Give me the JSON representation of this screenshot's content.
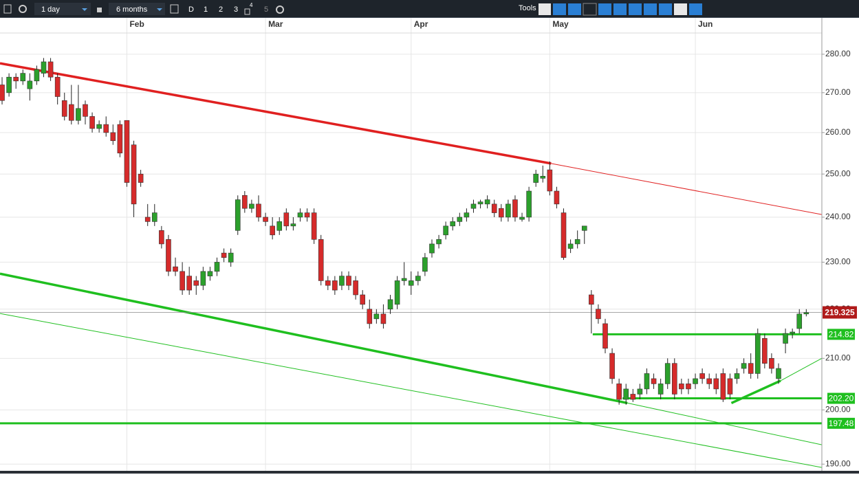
{
  "toolbar": {
    "interval": "1 day",
    "range": "6 months",
    "buttons": [
      "D",
      "1",
      "2",
      "3",
      "4",
      "5"
    ],
    "tools": "Tools"
  },
  "chart_data": {
    "type": "candlestick",
    "log_scale": true,
    "grid": true,
    "up_color": "#2ca02c",
    "down_color": "#d62b2b",
    "categories": [
      null,
      null,
      null,
      null,
      null,
      null,
      null,
      null,
      null,
      null,
      null,
      null,
      null,
      null,
      null,
      null,
      null,
      null,
      "Feb",
      null,
      null,
      null,
      null,
      null,
      null,
      null,
      null,
      null,
      null,
      null,
      null,
      null,
      null,
      null,
      null,
      null,
      null,
      null,
      "Mar",
      null,
      null,
      null,
      null,
      null,
      null,
      null,
      null,
      null,
      null,
      null,
      null,
      null,
      null,
      null,
      null,
      null,
      null,
      null,
      null,
      "Apr",
      null,
      null,
      null,
      null,
      null,
      null,
      null,
      null,
      null,
      null,
      null,
      null,
      null,
      null,
      null,
      null,
      null,
      null,
      null,
      "May",
      null,
      null,
      null,
      null,
      null,
      null,
      null,
      null,
      null,
      null,
      null,
      null,
      null,
      null,
      null,
      null,
      null,
      null,
      null,
      null,
      "Jun",
      null,
      null,
      null,
      null,
      null,
      null,
      null,
      null,
      null,
      null,
      null,
      null,
      null,
      null,
      null,
      null
    ],
    "open": [
      272,
      270,
      274,
      273,
      271,
      273,
      275,
      278,
      274,
      268,
      267,
      263,
      267,
      264,
      261,
      262,
      260,
      262,
      263,
      257,
      250,
      240,
      239,
      237,
      235,
      229,
      228,
      227,
      226,
      225,
      227,
      228,
      232,
      230,
      237,
      245,
      242,
      243,
      240,
      238,
      237,
      241,
      238,
      240,
      241,
      241,
      235,
      226,
      226,
      225,
      227,
      226,
      223,
      220,
      218,
      219,
      220,
      221,
      226,
      225,
      226,
      228,
      232,
      234,
      236,
      238,
      239,
      240,
      242,
      243,
      243,
      243,
      242,
      240,
      244,
      239.5,
      240,
      248,
      249,
      251,
      246,
      241,
      233,
      234,
      237,
      223,
      220,
      217,
      211,
      205,
      202,
      203,
      203,
      204,
      206,
      203,
      205,
      209,
      205,
      205,
      205,
      207,
      206,
      206,
      207,
      206,
      206,
      208,
      209,
      207,
      214,
      210,
      206,
      213,
      215,
      216,
      219
    ],
    "high": [
      274,
      275,
      275,
      276,
      275,
      277,
      279,
      279,
      275,
      270,
      272,
      272,
      268,
      265,
      263,
      264,
      262,
      263,
      263,
      258,
      251,
      243,
      243,
      238,
      236,
      231,
      230,
      229,
      227,
      229,
      229,
      231,
      233,
      233,
      245,
      246,
      244,
      245,
      241,
      240,
      240,
      242,
      240,
      242,
      242,
      242,
      236,
      227,
      227,
      228,
      228,
      227,
      224,
      222,
      220,
      221,
      223,
      227,
      230,
      228,
      228,
      232,
      235,
      236,
      239,
      240,
      241,
      242,
      244,
      244,
      245,
      244,
      243,
      244,
      245,
      241,
      247,
      251,
      252,
      253,
      247,
      242,
      235,
      237,
      238,
      224,
      221,
      218,
      212,
      206,
      205,
      204,
      205,
      208,
      207,
      206,
      210,
      210,
      206,
      206,
      207,
      208,
      207,
      207,
      208,
      207,
      208,
      210,
      211,
      216,
      215,
      211,
      209,
      216,
      216,
      220,
      220
    ],
    "low": [
      267,
      269,
      271,
      272,
      268,
      272,
      274,
      273,
      267,
      263,
      262,
      262,
      262,
      260,
      260,
      259,
      257,
      254,
      247,
      240,
      247,
      238,
      238,
      233,
      227,
      227,
      223,
      223,
      223,
      224,
      226,
      227,
      230,
      229,
      236,
      241,
      241,
      239,
      238,
      235,
      236,
      237,
      237,
      239,
      239,
      234,
      225,
      224,
      223,
      224,
      224,
      222,
      220,
      216,
      217,
      216,
      219,
      220,
      225,
      223,
      225,
      227,
      231,
      233,
      235,
      237,
      238,
      239,
      241,
      242,
      242,
      240,
      239,
      239,
      239,
      239,
      239,
      247,
      248,
      245,
      242,
      230.5,
      232,
      233,
      234,
      215,
      217,
      211,
      205,
      201,
      201,
      201.5,
      202,
      203,
      204,
      202,
      204,
      202,
      203,
      203,
      204,
      205,
      204,
      203,
      201.5,
      202,
      205,
      207,
      206,
      206,
      208,
      207,
      205,
      211,
      214,
      215,
      218.5
    ],
    "close": [
      268,
      274,
      273,
      275,
      273,
      276,
      278,
      274,
      269,
      264,
      263,
      266,
      264,
      261,
      262,
      260,
      258,
      255,
      248,
      243,
      248,
      239,
      241,
      234,
      228,
      228,
      224,
      224,
      225,
      228,
      228,
      230,
      231,
      232,
      244,
      242,
      243,
      240,
      239,
      236,
      239,
      238,
      238.5,
      241,
      240,
      235,
      226,
      225,
      224,
      227,
      225,
      223,
      221,
      217,
      219,
      217,
      222,
      226,
      226.5,
      226,
      227,
      231,
      234,
      235,
      238,
      239,
      240,
      241,
      243,
      243.5,
      244,
      241,
      240,
      243,
      240,
      240,
      246,
      250,
      249.5,
      246,
      243,
      231,
      234,
      235,
      238,
      221,
      218,
      212,
      206,
      202,
      204,
      202,
      204,
      207,
      205,
      205,
      209,
      203,
      204,
      204,
      206,
      206,
      205,
      204,
      202,
      203,
      207,
      209,
      207,
      215,
      209,
      208,
      208,
      215,
      215.3,
      219,
      219.3
    ],
    "xlim": [
      -0.3,
      118.25
    ],
    "ylim": [
      188.8,
      289.8
    ],
    "yticks": [
      {
        "value": 190,
        "label": "190.00"
      },
      {
        "value": 200,
        "label": "200.00"
      },
      {
        "value": 210,
        "label": "210.00"
      },
      {
        "value": 220,
        "label": "220.00"
      },
      {
        "value": 230,
        "label": "230.00"
      },
      {
        "value": 240,
        "label": "240.00"
      },
      {
        "value": 250,
        "label": "250.00"
      },
      {
        "value": 260,
        "label": "260.00"
      },
      {
        "value": 270,
        "label": "270.00"
      },
      {
        "value": 280,
        "label": "280.00"
      }
    ],
    "last_price": 219.325,
    "last_price_color": "#b01a1a",
    "levels": [
      {
        "value": 214.82,
        "label": "214.82",
        "start": 85.2,
        "color": "#1fbf1f"
      },
      {
        "value": 202.2,
        "label": "202.20",
        "start": 89.5,
        "color": "#1fbf1f"
      },
      {
        "value": 197.48,
        "label": "197.48",
        "start": -0.3,
        "color": "#1fbf1f"
      }
    ],
    "trendlines": [
      {
        "color": "#e02020",
        "style": "thick",
        "points": [
          [
            -0.3,
            277.6
          ],
          [
            79.2,
            252.5
          ]
        ]
      },
      {
        "color": "#e02020",
        "style": "thin",
        "points": [
          [
            79.2,
            252.5
          ],
          [
            118.25,
            240.6
          ]
        ]
      },
      {
        "color": "#1fbf1f",
        "style": "thick",
        "points": [
          [
            -0.3,
            227.5
          ],
          [
            90.2,
            201.3
          ]
        ]
      },
      {
        "color": "#1fbf1f",
        "style": "thin",
        "points": [
          [
            90.2,
            201.3
          ],
          [
            118.25,
            193.5
          ]
        ]
      },
      {
        "color": "#1fbf1f",
        "style": "thin",
        "points": [
          [
            -0.3,
            219.1
          ],
          [
            118.25,
            189.4
          ]
        ]
      },
      {
        "color": "#1fbf1f",
        "style": "thick",
        "points": [
          [
            105.2,
            201.3
          ],
          [
            112.3,
            205.6
          ]
        ]
      },
      {
        "color": "#1fbf1f",
        "style": "thin",
        "points": [
          [
            112.3,
            205.6
          ],
          [
            118.25,
            210
          ]
        ]
      }
    ]
  }
}
